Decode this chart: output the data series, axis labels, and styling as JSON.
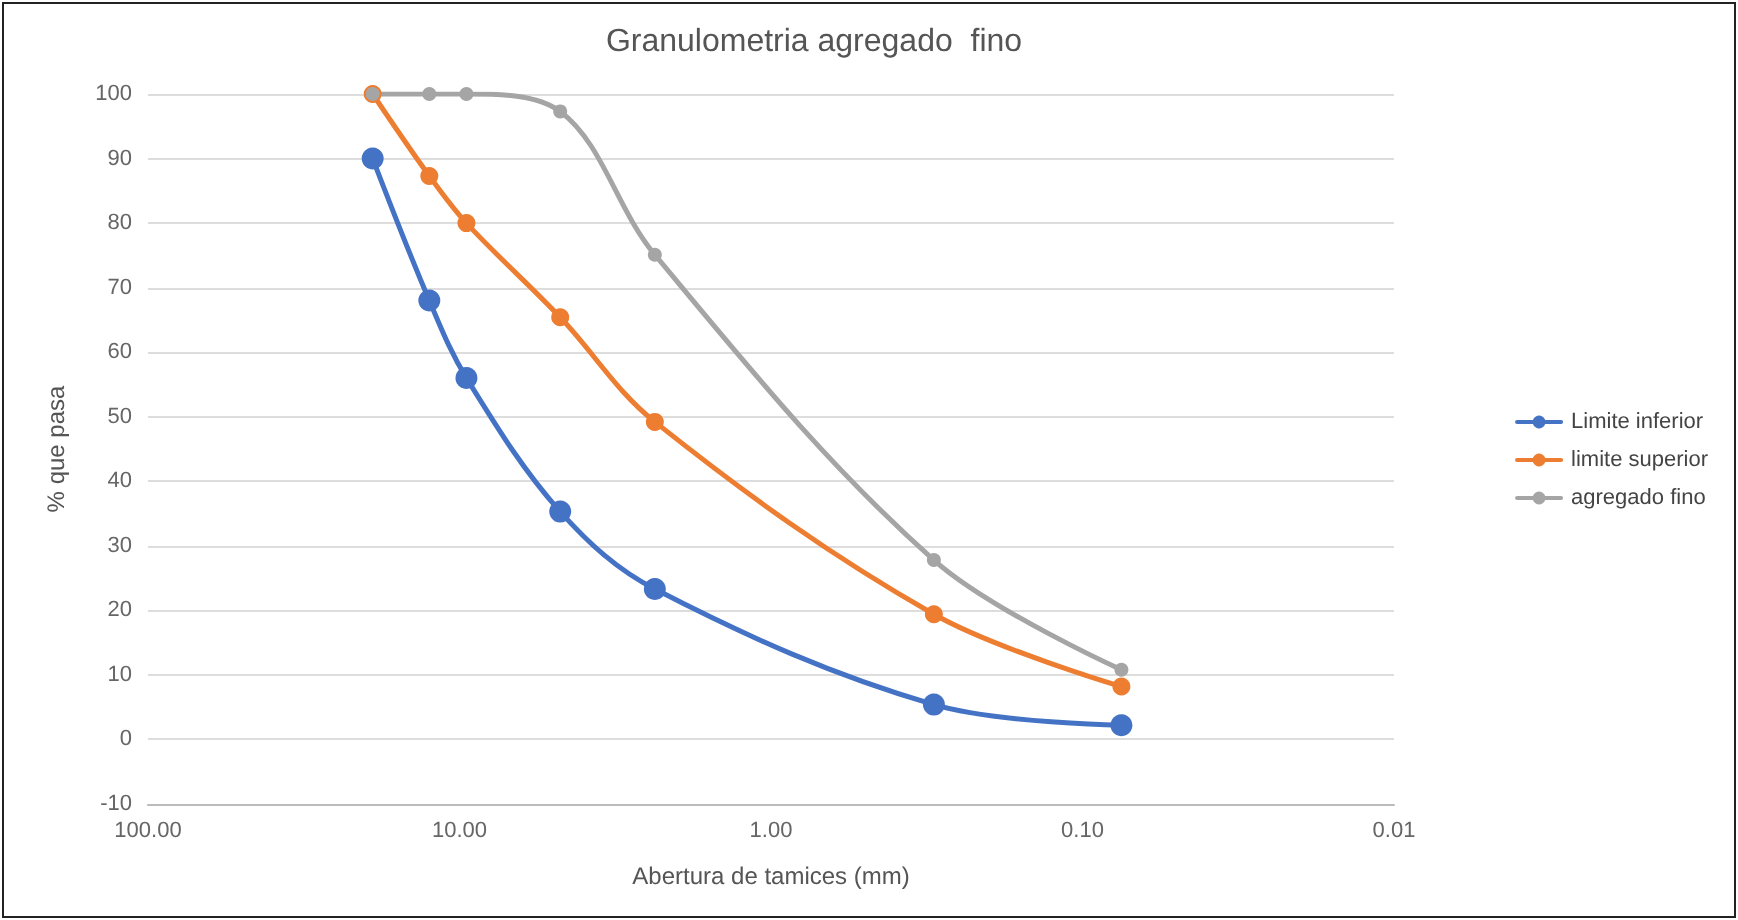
{
  "chart_data": {
    "type": "line",
    "title": "Granulometria agregado  fino",
    "xlabel": "Abertura de tamices (mm)",
    "ylabel": "% que pasa",
    "x": [
      19,
      12.5,
      9.5,
      4.75,
      2.36,
      0.3,
      0.075
    ],
    "series": [
      {
        "name": "Limite inferior",
        "color": "#4472c4",
        "values": [
          90,
          68,
          56,
          35.3,
          23.3,
          5.4,
          2.2
        ]
      },
      {
        "name": "limite superior",
        "color": "#ed7d31",
        "values": [
          100,
          87.3,
          80,
          65.4,
          49.2,
          19.4,
          8.2
        ]
      },
      {
        "name": "agregado fino",
        "color": "#a5a5a5",
        "values": [
          100,
          100,
          100,
          97.3,
          75.1,
          27.8,
          10.8
        ]
      }
    ],
    "log": "x",
    "xlim": [
      100,
      0.01
    ],
    "xticks": [
      {
        "value": 100,
        "label": "100.00"
      },
      {
        "value": 10,
        "label": "10.00"
      },
      {
        "value": 1,
        "label": "1.00"
      },
      {
        "value": 0.1,
        "label": "0.10"
      },
      {
        "value": 0.01,
        "label": "0.01"
      }
    ],
    "ylim": [
      -10,
      100
    ],
    "yticks": [
      -10,
      0,
      10,
      20,
      30,
      40,
      50,
      60,
      70,
      80,
      90,
      100
    ],
    "grid": "y",
    "legend": "right",
    "marker": "circle",
    "line_style": "solid"
  }
}
